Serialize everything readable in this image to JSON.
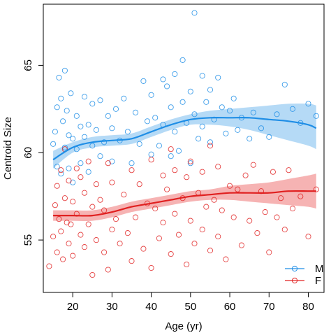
{
  "chart_data": {
    "type": "scatter",
    "title": "",
    "xlabel": "Age (yr)",
    "ylabel": "Centroid Size",
    "xlim": [
      12.5,
      84
    ],
    "ylim": [
      52,
      68.5
    ],
    "xticks": [
      20,
      30,
      40,
      50,
      60,
      70,
      80
    ],
    "yticks": [
      55,
      60,
      65
    ],
    "grid": false,
    "legend_position": "bottom-right",
    "series": [
      {
        "name": "M",
        "color": "#1f8ee6",
        "band_color": "#a8d4f5",
        "fit": {
          "x": [
            15,
            20,
            25,
            30,
            35,
            40,
            45,
            50,
            55,
            60,
            65,
            70,
            75,
            80,
            82
          ],
          "y": [
            59.6,
            60.3,
            60.6,
            60.7,
            60.8,
            61.2,
            61.6,
            61.9,
            62.0,
            62.0,
            62.0,
            61.9,
            61.8,
            61.6,
            61.4
          ]
        },
        "band_low": [
          59.1,
          60.0,
          60.3,
          60.4,
          60.5,
          60.9,
          61.3,
          61.6,
          61.6,
          61.5,
          61.3,
          61.0,
          60.7,
          60.4,
          60.2
        ],
        "band_high": [
          60.1,
          60.6,
          60.9,
          61.0,
          61.1,
          61.5,
          61.9,
          62.2,
          62.4,
          62.5,
          62.6,
          62.7,
          62.8,
          62.8,
          62.7
        ],
        "points": [
          [
            15,
            60.5
          ],
          [
            15.5,
            61.2
          ],
          [
            16,
            62.6
          ],
          [
            16,
            59.2
          ],
          [
            16.5,
            64.3
          ],
          [
            17,
            63.1
          ],
          [
            17,
            58.8
          ],
          [
            17.5,
            61.8
          ],
          [
            18,
            64.7
          ],
          [
            18,
            60.3
          ],
          [
            18.5,
            62.4
          ],
          [
            19,
            61.0
          ],
          [
            19,
            59.1
          ],
          [
            19.5,
            63.4
          ],
          [
            20,
            60.8
          ],
          [
            20,
            58.3
          ],
          [
            21,
            62.1
          ],
          [
            21,
            60.2
          ],
          [
            22,
            61.5
          ],
          [
            22,
            59.4
          ],
          [
            23,
            63.2
          ],
          [
            23,
            60.9
          ],
          [
            24,
            61.6
          ],
          [
            24,
            58.9
          ],
          [
            25,
            62.8
          ],
          [
            25,
            60.4
          ],
          [
            26,
            61.3
          ],
          [
            27,
            63.0
          ],
          [
            27,
            59.8
          ],
          [
            28,
            60.6
          ],
          [
            29,
            62.1
          ],
          [
            30,
            61.4
          ],
          [
            30,
            59.5
          ],
          [
            31,
            62.5
          ],
          [
            32,
            60.7
          ],
          [
            33,
            63.1
          ],
          [
            34,
            61.2
          ],
          [
            35,
            59.4
          ],
          [
            36,
            62.3
          ],
          [
            37,
            60.5
          ],
          [
            38,
            64.1
          ],
          [
            39,
            61.8
          ],
          [
            40,
            59.9
          ],
          [
            40,
            63.3
          ],
          [
            41,
            62.0
          ],
          [
            42,
            60.4
          ],
          [
            43,
            64.2
          ],
          [
            43,
            61.6
          ],
          [
            44,
            63.8
          ],
          [
            45,
            59.8
          ],
          [
            45,
            62.6
          ],
          [
            46,
            64.5
          ],
          [
            46,
            61.2
          ],
          [
            47,
            60.1
          ],
          [
            48,
            65.3
          ],
          [
            48,
            62.9
          ],
          [
            49,
            61.7
          ],
          [
            50,
            59.4
          ],
          [
            50,
            63.5
          ],
          [
            51,
            68.0
          ],
          [
            51,
            62.2
          ],
          [
            52,
            60.8
          ],
          [
            53,
            64.4
          ],
          [
            53,
            61.5
          ],
          [
            54,
            62.9
          ],
          [
            55,
            60.6
          ],
          [
            55,
            63.6
          ],
          [
            56,
            61.9
          ],
          [
            57,
            64.3
          ],
          [
            58,
            62.6
          ],
          [
            59,
            61.1
          ],
          [
            60,
            62.4
          ],
          [
            61,
            63.1
          ],
          [
            62,
            61.3
          ],
          [
            63,
            62.0
          ],
          [
            65,
            60.8
          ],
          [
            66,
            62.3
          ],
          [
            68,
            61.4
          ],
          [
            70,
            60.9
          ],
          [
            72,
            62.2
          ],
          [
            74,
            63.9
          ],
          [
            76,
            62.5
          ],
          [
            78,
            61.7
          ],
          [
            80,
            62.8
          ],
          [
            82,
            62.1
          ]
        ]
      },
      {
        "name": "F",
        "color": "#e02020",
        "band_color": "#f4a6a6",
        "fit": {
          "x": [
            15,
            20,
            25,
            30,
            35,
            40,
            45,
            50,
            55,
            60,
            65,
            70,
            75,
            80,
            82
          ],
          "y": [
            56.4,
            56.4,
            56.4,
            56.6,
            56.9,
            57.1,
            57.3,
            57.5,
            57.6,
            57.7,
            57.7,
            57.7,
            57.8,
            57.8,
            57.8
          ]
        },
        "band_low": [
          56.1,
          56.1,
          56.1,
          56.3,
          56.6,
          56.8,
          57.0,
          57.2,
          57.3,
          57.3,
          57.2,
          57.1,
          57.0,
          56.9,
          56.8
        ],
        "band_high": [
          56.7,
          56.7,
          56.7,
          56.9,
          57.2,
          57.4,
          57.6,
          57.8,
          57.9,
          58.1,
          58.2,
          58.3,
          58.5,
          58.7,
          58.8
        ],
        "points": [
          [
            14,
            53.5
          ],
          [
            15,
            55.2
          ],
          [
            15.5,
            57.0
          ],
          [
            16,
            54.3
          ],
          [
            16,
            58.1
          ],
          [
            16.5,
            56.2
          ],
          [
            17,
            55.5
          ],
          [
            17,
            59.0
          ],
          [
            17.5,
            53.9
          ],
          [
            18,
            57.4
          ],
          [
            18,
            60.2
          ],
          [
            18.5,
            56.0
          ],
          [
            19,
            54.8
          ],
          [
            19,
            58.4
          ],
          [
            19.5,
            55.9
          ],
          [
            20,
            57.2
          ],
          [
            20,
            54.1
          ],
          [
            21,
            59.1
          ],
          [
            21,
            56.5
          ],
          [
            22,
            55.3
          ],
          [
            22,
            58.6
          ],
          [
            23,
            54.6
          ],
          [
            23,
            57.7
          ],
          [
            24,
            59.5
          ],
          [
            24,
            55.9
          ],
          [
            25,
            53.0
          ],
          [
            25,
            56.9
          ],
          [
            26,
            58.2
          ],
          [
            26,
            55.0
          ],
          [
            27,
            57.3
          ],
          [
            28,
            54.3
          ],
          [
            28,
            56.7
          ],
          [
            29,
            59.4
          ],
          [
            29,
            53.3
          ],
          [
            30,
            55.6
          ],
          [
            30,
            58.3
          ],
          [
            31,
            56.2
          ],
          [
            32,
            54.8
          ],
          [
            33,
            57.6
          ],
          [
            34,
            55.4
          ],
          [
            35,
            59.0
          ],
          [
            35,
            53.8
          ],
          [
            36,
            56.3
          ],
          [
            37,
            58.2
          ],
          [
            38,
            54.5
          ],
          [
            39,
            57.1
          ],
          [
            40,
            53.4
          ],
          [
            40,
            59.6
          ],
          [
            41,
            56.8
          ],
          [
            42,
            55.1
          ],
          [
            43,
            58.7
          ],
          [
            43,
            56.0
          ],
          [
            44,
            57.9
          ],
          [
            45,
            54.2
          ],
          [
            45,
            60.2
          ],
          [
            46,
            56.5
          ],
          [
            46,
            59.0
          ],
          [
            47,
            55.3
          ],
          [
            48,
            57.4
          ],
          [
            49,
            53.6
          ],
          [
            49,
            58.6
          ],
          [
            50,
            56.1
          ],
          [
            50,
            59.5
          ],
          [
            51,
            54.8
          ],
          [
            52,
            57.7
          ],
          [
            53,
            55.6
          ],
          [
            53,
            58.9
          ],
          [
            54,
            56.9
          ],
          [
            55,
            54.4
          ],
          [
            55,
            60.4
          ],
          [
            56,
            57.3
          ],
          [
            57,
            55.2
          ],
          [
            57,
            59.2
          ],
          [
            58,
            56.7
          ],
          [
            59,
            53.9
          ],
          [
            60,
            58.1
          ],
          [
            61,
            56.3
          ],
          [
            62,
            57.9
          ],
          [
            63,
            54.7
          ],
          [
            64,
            58.7
          ],
          [
            65,
            56.1
          ],
          [
            66,
            59.3
          ],
          [
            67,
            55.4
          ],
          [
            68,
            57.8
          ],
          [
            69,
            56.6
          ],
          [
            70,
            54.3
          ],
          [
            71,
            58.9
          ],
          [
            72,
            56.3
          ],
          [
            73,
            57.4
          ],
          [
            74,
            55.6
          ],
          [
            75,
            59.0
          ],
          [
            76,
            56.8
          ],
          [
            78,
            57.5
          ],
          [
            80,
            55.2
          ],
          [
            82,
            57.9
          ]
        ]
      }
    ]
  }
}
